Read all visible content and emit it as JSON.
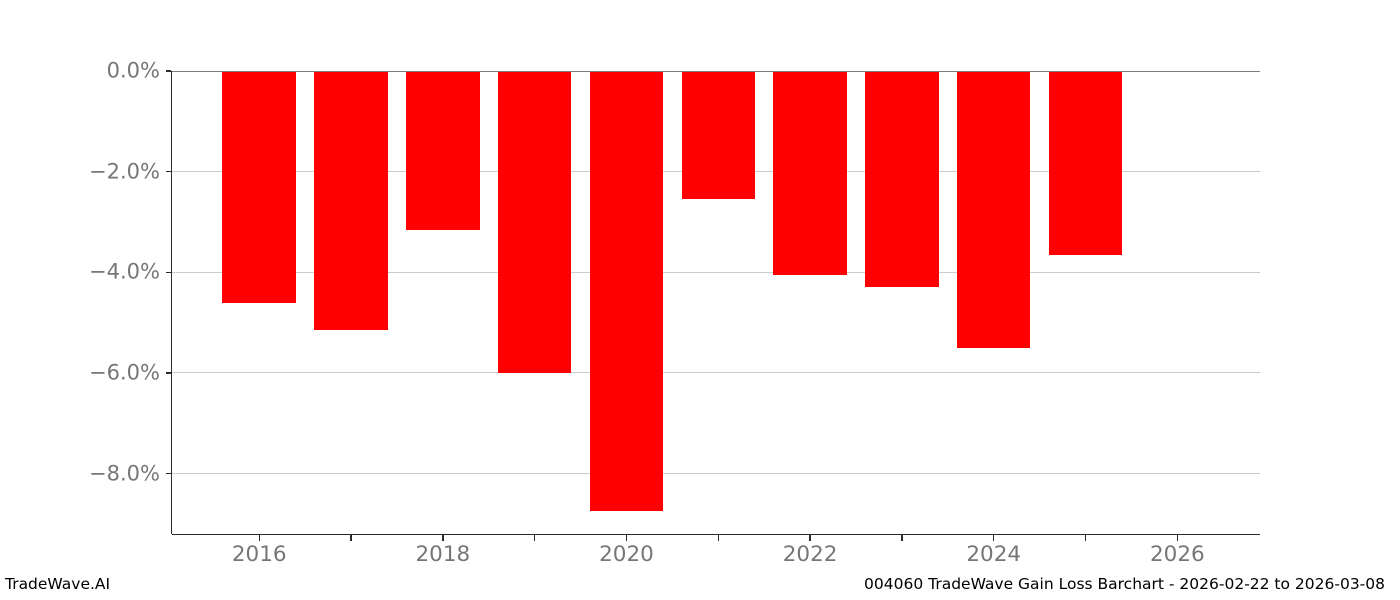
{
  "footer": {
    "brand": "TradeWave.AI",
    "caption": "004060 TradeWave Gain Loss Barchart - 2026-02-22 to 2026-03-08"
  },
  "chart_data": {
    "type": "bar",
    "title": "",
    "xlabel": "",
    "ylabel": "",
    "categories": [
      "2016",
      "2017",
      "2018",
      "2019",
      "2020",
      "2021",
      "2022",
      "2023",
      "2024",
      "2025"
    ],
    "values": [
      -4.6,
      -5.15,
      -3.15,
      -6.0,
      -8.75,
      -2.55,
      -4.05,
      -4.3,
      -5.5,
      -3.65
    ],
    "unit": "%",
    "bar_color": "#ff0000",
    "bar_width_years": 0.8,
    "xlim": [
      2015.05,
      2026.9
    ],
    "ylim": [
      -9.2,
      0
    ],
    "yticks": [
      {
        "value": 0,
        "label": "0.0%"
      },
      {
        "value": -2,
        "label": "−2.0%"
      },
      {
        "value": -4,
        "label": "−4.0%"
      },
      {
        "value": -6,
        "label": "−6.0%"
      },
      {
        "value": -8,
        "label": "−8.0%"
      }
    ],
    "xticks": [
      {
        "value": 2016,
        "label": "2016"
      },
      {
        "value": 2017,
        "label": ""
      },
      {
        "value": 2018,
        "label": "2018"
      },
      {
        "value": 2019,
        "label": ""
      },
      {
        "value": 2020,
        "label": "2020"
      },
      {
        "value": 2021,
        "label": ""
      },
      {
        "value": 2022,
        "label": "2022"
      },
      {
        "value": 2023,
        "label": ""
      },
      {
        "value": 2024,
        "label": "2024"
      },
      {
        "value": 2025,
        "label": ""
      },
      {
        "value": 2026,
        "label": "2026"
      }
    ],
    "grid": "horizontal",
    "grid_color": "#cccccc",
    "axis_color": "#2b2b2b",
    "top_spine_color": "#7f7f7f",
    "tick_label_color": "#767676",
    "legend": "none"
  }
}
